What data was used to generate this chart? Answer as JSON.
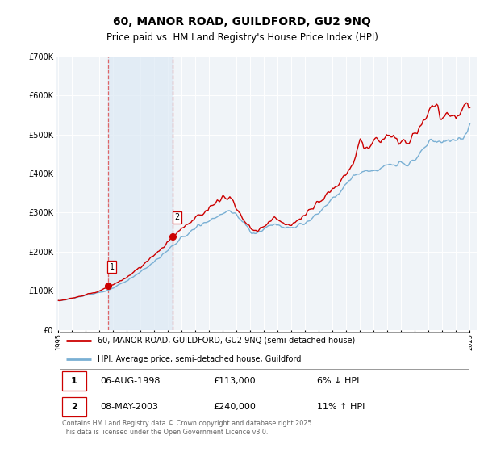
{
  "title": "60, MANOR ROAD, GUILDFORD, GU2 9NQ",
  "subtitle": "Price paid vs. HM Land Registry's House Price Index (HPI)",
  "title_fontsize": 10,
  "subtitle_fontsize": 8.5,
  "ylim": [
    0,
    700000
  ],
  "yticks": [
    0,
    100000,
    200000,
    300000,
    400000,
    500000,
    600000,
    700000
  ],
  "ytick_labels": [
    "£0",
    "£100K",
    "£200K",
    "£300K",
    "£400K",
    "£500K",
    "£600K",
    "£700K"
  ],
  "background_color": "#ffffff",
  "plot_bg_color": "#f0f4f8",
  "grid_color": "#ffffff",
  "red_line_color": "#cc0000",
  "blue_line_color": "#7ab0d4",
  "sale1_date_num": 1998.6,
  "sale1_value": 113000,
  "sale1_label": "1",
  "sale2_date_num": 2003.35,
  "sale2_value": 240000,
  "sale2_label": "2",
  "shade_color": "#ddeaf5",
  "shade_alpha": 0.7,
  "dashed_line_color": "#dd4444",
  "legend_items": [
    "60, MANOR ROAD, GUILDFORD, GU2 9NQ (semi-detached house)",
    "HPI: Average price, semi-detached house, Guildford"
  ],
  "table_rows": [
    {
      "num": "1",
      "date": "06-AUG-1998",
      "price": "£113,000",
      "hpi": "6% ↓ HPI"
    },
    {
      "num": "2",
      "date": "08-MAY-2003",
      "price": "£240,000",
      "hpi": "11% ↑ HPI"
    }
  ],
  "footer": "Contains HM Land Registry data © Crown copyright and database right 2025.\nThis data is licensed under the Open Government Licence v3.0.",
  "xtick_years": [
    1995,
    1996,
    1997,
    1998,
    1999,
    2000,
    2001,
    2002,
    2003,
    2004,
    2005,
    2006,
    2007,
    2008,
    2009,
    2010,
    2011,
    2012,
    2013,
    2014,
    2015,
    2016,
    2017,
    2018,
    2019,
    2020,
    2021,
    2022,
    2023,
    2024,
    2025
  ]
}
